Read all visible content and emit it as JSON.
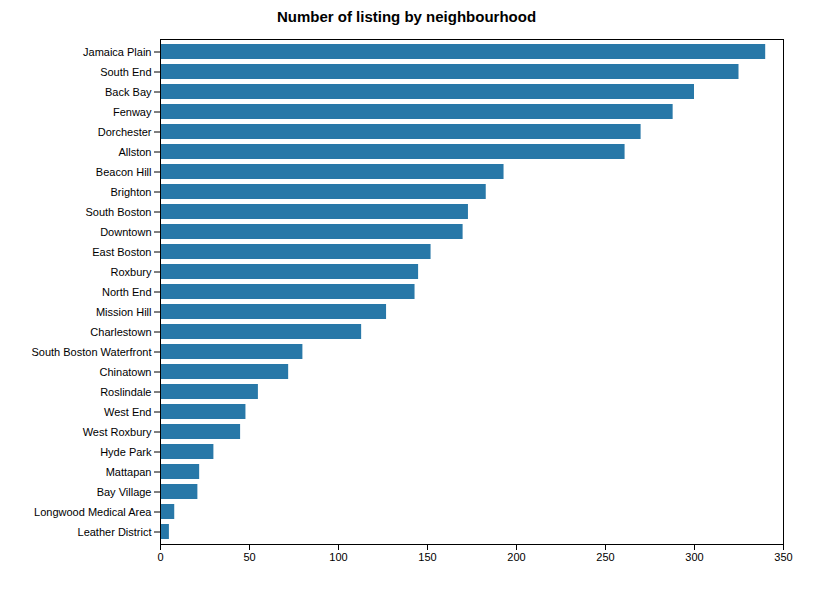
{
  "chart_data": {
    "type": "bar",
    "orientation": "horizontal",
    "title": "Number of listing by neighbourhood",
    "categories": [
      "Leather District",
      "Longwood Medical Area",
      "Bay Village",
      "Mattapan",
      "Hyde Park",
      "West Roxbury",
      "West End",
      "Roslindale",
      "Chinatown",
      "South Boston Waterfront",
      "Charlestown",
      "Mission Hill",
      "North End",
      "Roxbury",
      "East Boston",
      "Downtown",
      "South Boston",
      "Brighton",
      "Beacon Hill",
      "Allston",
      "Dorchester",
      "Fenway",
      "Back Bay",
      "South End",
      "Jamaica Plain"
    ],
    "values": [
      5,
      8,
      21,
      22,
      30,
      45,
      48,
      55,
      72,
      80,
      113,
      127,
      143,
      145,
      152,
      170,
      173,
      183,
      193,
      261,
      270,
      288,
      300,
      325,
      340
    ],
    "color": "#2878a8",
    "xlim": [
      0,
      350
    ],
    "xticks": [
      0,
      50,
      100,
      150,
      200,
      250,
      300,
      350
    ],
    "grid": false
  }
}
